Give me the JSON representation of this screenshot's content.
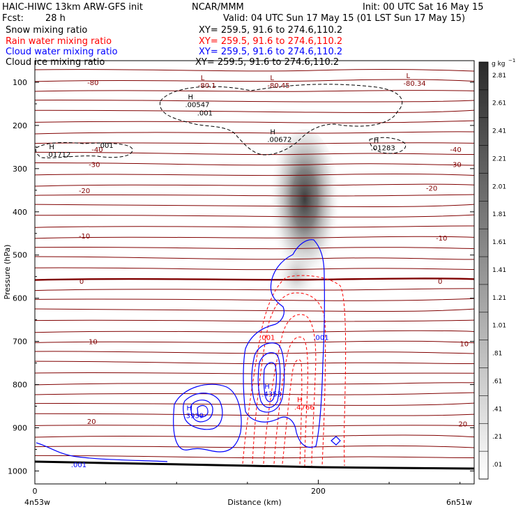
{
  "header": {
    "title_left": "HAIC-HIWC 13km ARW-GFS init",
    "center": "NCAR/MMM",
    "init": "Init: 00 UTC Sat 16 May 15",
    "fcst_label": "Fcst:",
    "fcst_value": "28 h",
    "valid": "Valid: 04 UTC Sun 17 May 15 (01 LST Sun 17 May 15)",
    "fields": [
      {
        "name": "Snow mixing ratio",
        "xy": "XY= 259.5, 91.6 to 274.6,110.2",
        "color": "#000000"
      },
      {
        "name": "Rain water mixing ratio",
        "xy": "XY= 259.5, 91.6 to 274.6,110.2",
        "color": "#ff0000"
      },
      {
        "name": "Cloud water mixing ratio",
        "xy": "XY= 259.5, 91.6 to 274.6,110.2",
        "color": "#0000ff"
      },
      {
        "name": "Cloud ice mixing ratio",
        "xy": "XY= 259.5, 91.6 to 274.6,110.2",
        "color": "#000000"
      }
    ]
  },
  "colorbar": {
    "unit": "g kg",
    "unit_sup": "−1",
    "labels": [
      "2.81",
      "2.61",
      "2.41",
      "2.21",
      "2.01",
      "1.81",
      "1.61",
      "1.41",
      "1.21",
      "1.01",
      ".81",
      ".61",
      ".41",
      ".21",
      ".01"
    ]
  },
  "axes": {
    "ylabel": "Pressure (hPa)",
    "xlabel": "Distance (km)",
    "left_coord": "4n53w",
    "right_coord": "6n51w"
  },
  "chart_data": {
    "type": "cross-section",
    "x": {
      "label": "Distance (km)",
      "ticks": [
        0,
        200
      ],
      "range": [
        0,
        310
      ]
    },
    "y": {
      "label": "Pressure (hPa)",
      "ticks": [
        100,
        200,
        300,
        400,
        500,
        600,
        700,
        800,
        900,
        1000
      ],
      "range": [
        50,
        1030
      ],
      "inverted": true
    },
    "shaded_field": {
      "name": "Snow mixing ratio",
      "unit": "g kg-1",
      "levels": [
        0.01,
        0.21,
        0.41,
        0.61,
        0.81,
        1.01,
        1.21,
        1.41,
        1.61,
        1.81,
        2.01,
        2.21,
        2.41,
        2.61,
        2.81
      ],
      "max_near": {
        "x": 188,
        "p": 380
      }
    },
    "temperature_labels": [
      {
        "text": "-80",
        "x": 41,
        "p": 100
      },
      {
        "text": "-40",
        "x": 44,
        "p": 255
      },
      {
        "text": "-30",
        "x": 42,
        "p": 290
      },
      {
        "text": "-20",
        "x": 35,
        "p": 350
      },
      {
        "text": "-10",
        "x": 35,
        "p": 455
      },
      {
        "text": "0",
        "x": 33,
        "p": 560
      },
      {
        "text": "10",
        "x": 41,
        "p": 700
      },
      {
        "text": "20",
        "x": 40,
        "p": 885
      },
      {
        "text": "-40",
        "x": 297,
        "p": 255
      },
      {
        "text": "-30",
        "x": 297,
        "p": 290
      },
      {
        "text": "-20",
        "x": 280,
        "p": 345
      },
      {
        "text": "-10",
        "x": 287,
        "p": 460
      },
      {
        "text": "0",
        "x": 286,
        "p": 560
      },
      {
        "text": "10",
        "x": 303,
        "p": 705
      },
      {
        "text": "20",
        "x": 302,
        "p": 890
      }
    ],
    "extrema": [
      {
        "kind": "L",
        "value": "-80.1",
        "x": 117,
        "p": 95
      },
      {
        "kind": "L",
        "value": "-80.45",
        "x": 166,
        "p": 95
      },
      {
        "kind": "L",
        "value": "-80.34",
        "x": 262,
        "p": 90
      },
      {
        "kind": "H",
        "value": ".00547",
        "x": 108,
        "p": 140,
        "field": "ice"
      },
      {
        "kind": "H",
        "value": ".00672",
        "x": 166,
        "p": 220,
        "field": "ice"
      },
      {
        "kind": "H",
        "value": ".01712",
        "x": 10,
        "p": 255,
        "field": "ice"
      },
      {
        "kind": "H",
        "value": ".01283",
        "x": 239,
        "p": 240,
        "field": "ice"
      },
      {
        "kind": "H",
        "value": ".4353",
        "x": 162,
        "p": 810,
        "field": "cloud water"
      },
      {
        "kind": "H",
        "value": ".3939",
        "x": 107,
        "p": 860,
        "field": "cloud water"
      },
      {
        "kind": "H",
        "value": ".4766",
        "x": 185,
        "p": 840,
        "field": "rain"
      }
    ],
    "contour_labels": [
      {
        "text": ".001",
        "x": 120,
        "p": 170,
        "color": "#000000"
      },
      {
        "text": ".001",
        "x": 50,
        "p": 245,
        "color": "#000000"
      },
      {
        "text": ".001",
        "x": 164,
        "p": 690,
        "color": "#ff0000"
      },
      {
        "text": ".001",
        "x": 202,
        "p": 690,
        "color": "#0000ff"
      },
      {
        "text": ".001",
        "x": 31,
        "p": 985,
        "color": "#0000ff"
      }
    ]
  }
}
